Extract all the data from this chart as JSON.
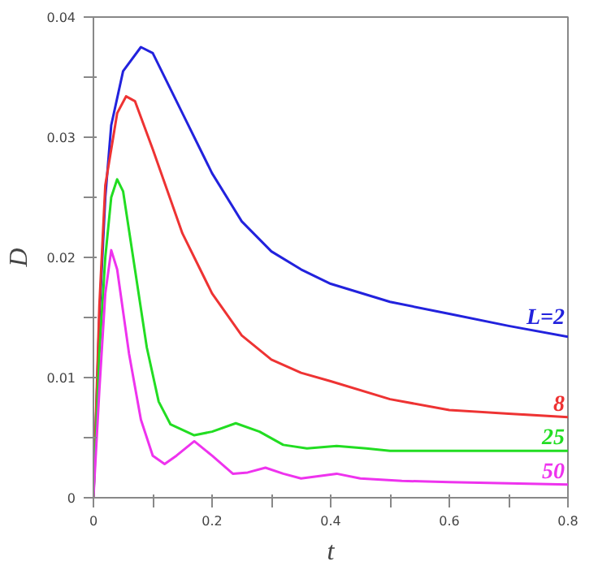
{
  "chart_data": {
    "type": "line",
    "xlabel": "t",
    "ylabel": "D",
    "xlim": [
      0,
      0.8
    ],
    "ylim": [
      0,
      0.04
    ],
    "xticks": [
      0,
      {
        "value": 0.1,
        "label": null
      },
      0.2,
      {
        "value": 0.3,
        "label": null
      },
      0.4,
      {
        "value": 0.5,
        "label": null
      },
      0.6,
      {
        "value": 0.7,
        "label": null
      },
      0.8
    ],
    "yticks": [
      0,
      {
        "value": 0.005,
        "label": null
      },
      0.01,
      {
        "value": 0.015,
        "label": null
      },
      0.02,
      {
        "value": 0.025,
        "label": null
      },
      0.03,
      {
        "value": 0.035,
        "label": null
      },
      0.04
    ],
    "grid": false,
    "marker": "none",
    "line_style": "solid",
    "series": [
      {
        "name": "L=2",
        "color": "#2222dd",
        "x": [
          0,
          0.01,
          0.02,
          0.03,
          0.05,
          0.08,
          0.1,
          0.15,
          0.2,
          0.25,
          0.3,
          0.35,
          0.4,
          0.5,
          0.6,
          0.7,
          0.8
        ],
        "values": [
          0,
          0.015,
          0.025,
          0.031,
          0.0355,
          0.0375,
          0.037,
          0.032,
          0.027,
          0.023,
          0.0205,
          0.019,
          0.0178,
          0.0163,
          0.0153,
          0.0143,
          0.0134
        ]
      },
      {
        "name": "8",
        "color": "#ee3333",
        "x": [
          0,
          0.01,
          0.02,
          0.04,
          0.055,
          0.07,
          0.1,
          0.15,
          0.2,
          0.25,
          0.3,
          0.35,
          0.4,
          0.5,
          0.6,
          0.7,
          0.8
        ],
        "values": [
          0,
          0.016,
          0.026,
          0.032,
          0.0334,
          0.033,
          0.029,
          0.022,
          0.017,
          0.0135,
          0.0115,
          0.0104,
          0.0097,
          0.0082,
          0.0073,
          0.007,
          0.0067
        ]
      },
      {
        "name": "25",
        "color": "#22dd22",
        "x": [
          0,
          0.01,
          0.02,
          0.03,
          0.04,
          0.05,
          0.07,
          0.09,
          0.11,
          0.13,
          0.17,
          0.2,
          0.24,
          0.28,
          0.32,
          0.36,
          0.41,
          0.46,
          0.5,
          0.6,
          0.7,
          0.8
        ],
        "values": [
          0,
          0.012,
          0.02,
          0.025,
          0.0265,
          0.0255,
          0.019,
          0.0125,
          0.008,
          0.0061,
          0.0052,
          0.0055,
          0.0062,
          0.0055,
          0.0044,
          0.0041,
          0.0043,
          0.0041,
          0.0039,
          0.0039,
          0.0039,
          0.0039
        ]
      },
      {
        "name": "50",
        "color": "#ee33ee",
        "x": [
          0,
          0.01,
          0.02,
          0.03,
          0.04,
          0.06,
          0.08,
          0.1,
          0.12,
          0.14,
          0.17,
          0.2,
          0.235,
          0.26,
          0.29,
          0.32,
          0.35,
          0.41,
          0.45,
          0.52,
          0.6,
          0.7,
          0.8
        ],
        "values": [
          0,
          0.009,
          0.017,
          0.0206,
          0.019,
          0.012,
          0.0065,
          0.0035,
          0.0028,
          0.0035,
          0.0047,
          0.0035,
          0.002,
          0.0021,
          0.0025,
          0.002,
          0.0016,
          0.002,
          0.0016,
          0.0014,
          0.0013,
          0.0012,
          0.0011
        ]
      }
    ]
  }
}
